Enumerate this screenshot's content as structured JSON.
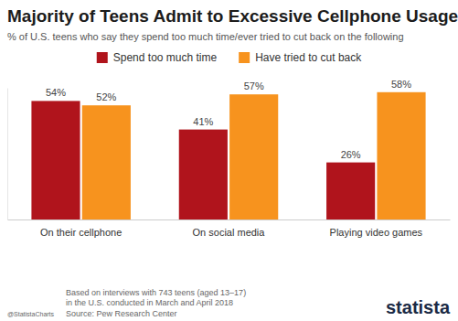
{
  "chart_data": {
    "type": "bar",
    "title": "Majority of Teens Admit to Excessive Cellphone Usage",
    "subtitle": "% of U.S. teens who say they spend too much time/ever tried to cut back on the following",
    "categories": [
      "On their cellphone",
      "On social media",
      "Playing video games"
    ],
    "series": [
      {
        "name": "Spend too much time",
        "color": "#b0141c",
        "values": [
          54,
          41,
          26
        ],
        "value_labels": [
          "54%",
          "41%",
          "26%"
        ]
      },
      {
        "name": "Have tried to cut back",
        "color": "#f7931e",
        "values": [
          52,
          57,
          58
        ],
        "value_labels": [
          "52%",
          "57%",
          "58%"
        ]
      }
    ],
    "ylim": [
      0,
      60
    ],
    "tick_labels": "x",
    "data_labels": true,
    "legend": "top",
    "note": [
      "Based on interviews with 743 teens (aged 13–17)",
      "in the U.S. conducted in March and April 2018"
    ],
    "source": "Source: Pew Research Center",
    "credit": "@StatistaCharts",
    "brand": "statista"
  }
}
